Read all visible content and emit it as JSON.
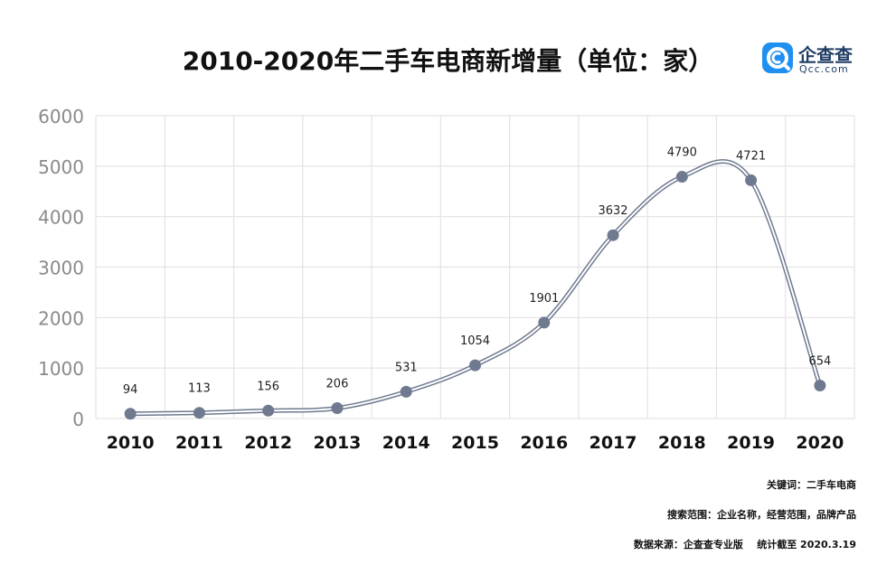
{
  "title": "2010-2020年二手车电商新增量（单位：家）",
  "brand": {
    "name": "企查查",
    "site": "Qcc.com",
    "color": "#1f8ff0",
    "icon": "qcc-logo-icon"
  },
  "chart_data": {
    "type": "line",
    "smooth": true,
    "categories": [
      "2010",
      "2011",
      "2012",
      "2013",
      "2014",
      "2015",
      "2016",
      "2017",
      "2018",
      "2019",
      "2020"
    ],
    "series": [
      {
        "values": [
          94,
          113,
          156,
          206,
          531,
          1054,
          1901,
          3632,
          4790,
          4721,
          654
        ]
      }
    ],
    "data_labels": [
      "94",
      "113",
      "156",
      "206",
      "531",
      "1054",
      "1901",
      "3632",
      "4790",
      "4721",
      "654"
    ],
    "y_ticks": [
      "0",
      "1000",
      "2000",
      "3000",
      "4000",
      "5000",
      "6000"
    ],
    "ylim": [
      0,
      6000
    ],
    "grid": true,
    "line_color": "#6f7a90",
    "marker_color": "#6f7a90",
    "grid_color": "#e3e3e3",
    "legend": "none"
  },
  "footer": {
    "keyword_label": "关键词：",
    "keyword_value": "二手车电商",
    "scope_label": "搜索范围：",
    "scope_value": "企业名称，经营范围，品牌产品",
    "source_label": "数据来源：",
    "source_value": "企查查专业版    统计截至 2020.3.19"
  }
}
